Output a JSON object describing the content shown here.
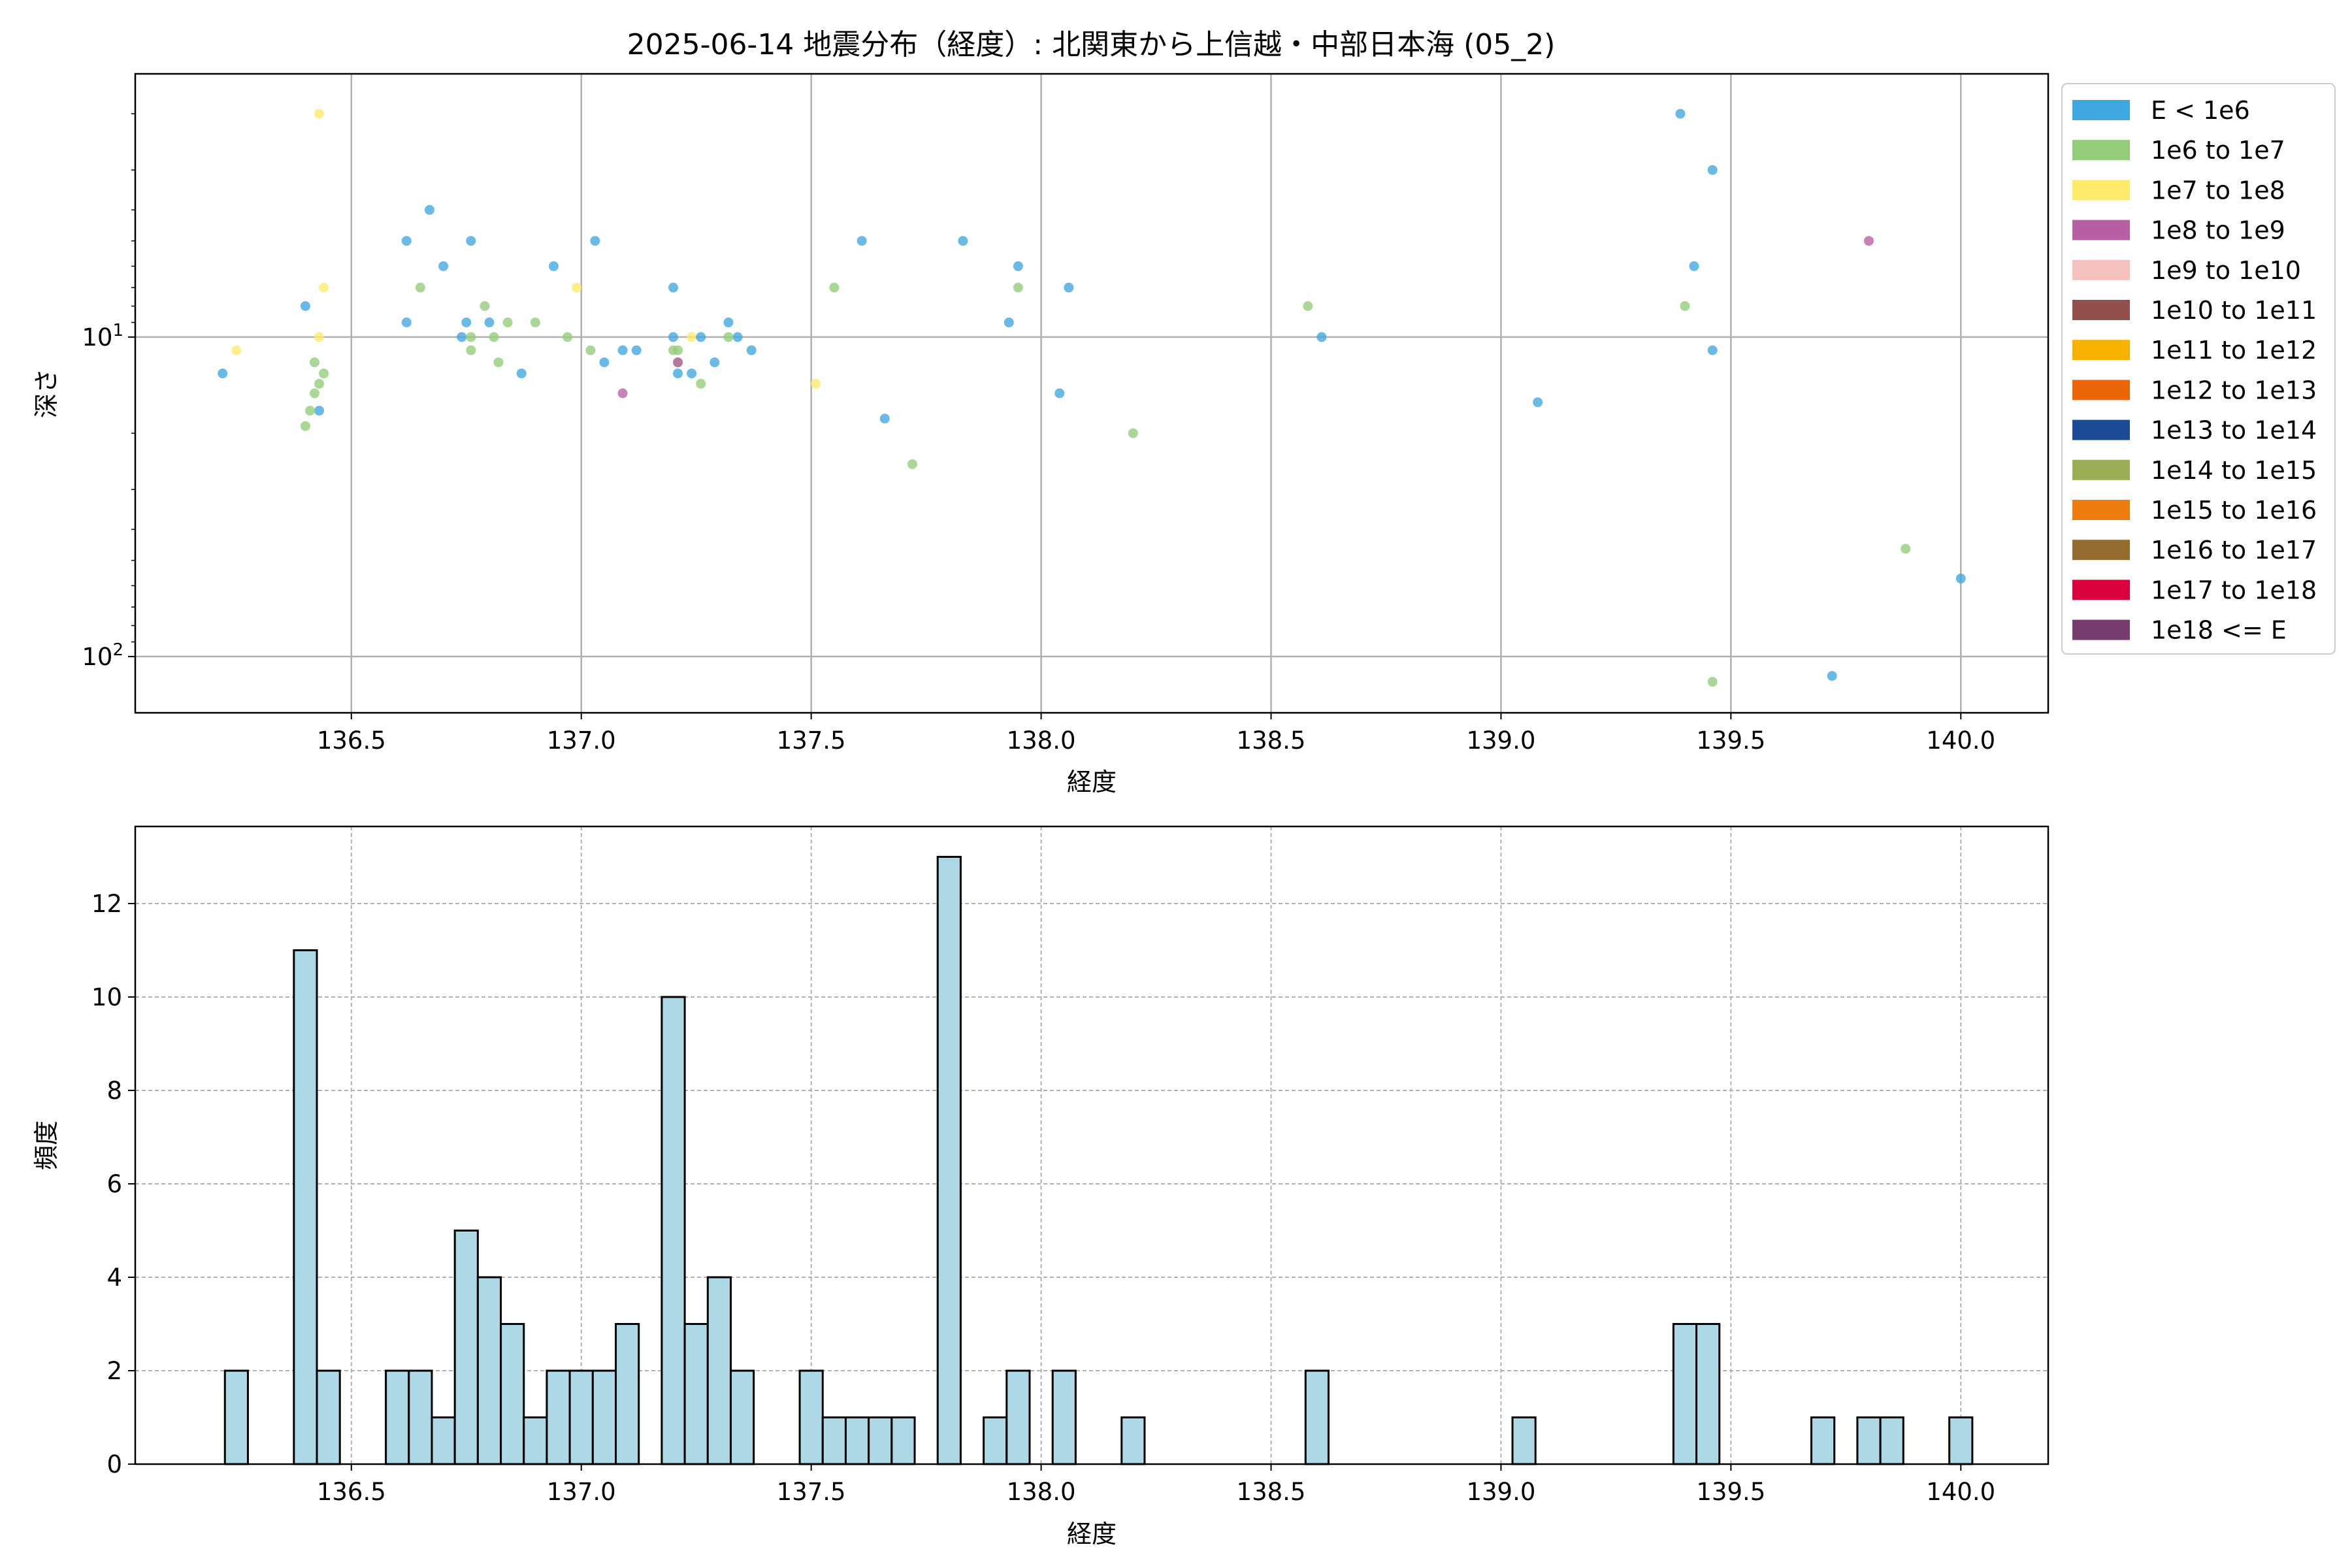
{
  "figure": {
    "title": "2025-06-14 地震分布（経度）: 北関東から上信越・中部日本海 (05_2)"
  },
  "chart_data": [
    {
      "type": "scatter",
      "xlabel": "経度",
      "ylabel": "深さ",
      "xlim": [
        136.03,
        140.19
      ],
      "ylim": [
        150,
        1.5
      ],
      "y_scale": "log",
      "y_inverted": true,
      "x_ticks": [
        "136.5",
        "137.0",
        "137.5",
        "138.0",
        "138.5",
        "139.0",
        "139.5",
        "140.0"
      ],
      "x_tick_values": [
        136.5,
        137.0,
        137.5,
        138.0,
        138.5,
        139.0,
        139.5,
        140.0
      ],
      "y_ticks": [
        {
          "base": "10",
          "exp": "1",
          "value": 10
        },
        {
          "base": "10",
          "exp": "2",
          "value": 100
        }
      ],
      "grid": true,
      "legend_position": "outside-right",
      "legend": [
        {
          "label": "E < 1e6",
          "color": "#3fa7e0"
        },
        {
          "label": "1e6 to 1e7",
          "color": "#94cc79"
        },
        {
          "label": "1e7 to 1e8",
          "color": "#ffeb6a"
        },
        {
          "label": "1e8 to 1e9",
          "color": "#b75fa4"
        },
        {
          "label": "1e9 to 1e10",
          "color": "#f5c1bd"
        },
        {
          "label": "1e10 to 1e11",
          "color": "#934f4c"
        },
        {
          "label": "1e11 to 1e12",
          "color": "#f7b200"
        },
        {
          "label": "1e12 to 1e13",
          "color": "#ec6608"
        },
        {
          "label": "1e13 to 1e14",
          "color": "#1b4a96"
        },
        {
          "label": "1e14 to 1e15",
          "color": "#9bad54"
        },
        {
          "label": "1e15 to 1e16",
          "color": "#ef7d0e"
        },
        {
          "label": "1e16 to 1e17",
          "color": "#946c30"
        },
        {
          "label": "1e17 to 1e18",
          "color": "#da003b"
        },
        {
          "label": "1e18 <= E",
          "color": "#783d6f"
        }
      ],
      "points": [
        {
          "x": 136.43,
          "y": 2.0,
          "c": 2
        },
        {
          "x": 136.25,
          "y": 11,
          "c": 2
        },
        {
          "x": 136.44,
          "y": 7,
          "c": 2
        },
        {
          "x": 136.43,
          "y": 10,
          "c": 2
        },
        {
          "x": 136.99,
          "y": 7,
          "c": 2
        },
        {
          "x": 137.24,
          "y": 10,
          "c": 2
        },
        {
          "x": 137.51,
          "y": 14,
          "c": 2
        },
        {
          "x": 136.22,
          "y": 13,
          "c": 0
        },
        {
          "x": 136.4,
          "y": 8,
          "c": 0
        },
        {
          "x": 136.43,
          "y": 17,
          "c": 0
        },
        {
          "x": 136.62,
          "y": 5,
          "c": 0
        },
        {
          "x": 136.62,
          "y": 9,
          "c": 0
        },
        {
          "x": 136.67,
          "y": 4,
          "c": 0
        },
        {
          "x": 136.7,
          "y": 6,
          "c": 0
        },
        {
          "x": 136.74,
          "y": 10,
          "c": 0
        },
        {
          "x": 136.75,
          "y": 9,
          "c": 0
        },
        {
          "x": 136.76,
          "y": 5,
          "c": 0
        },
        {
          "x": 136.8,
          "y": 9,
          "c": 0
        },
        {
          "x": 136.87,
          "y": 13,
          "c": 0
        },
        {
          "x": 136.94,
          "y": 6,
          "c": 0
        },
        {
          "x": 137.03,
          "y": 5,
          "c": 0
        },
        {
          "x": 137.05,
          "y": 12,
          "c": 0
        },
        {
          "x": 137.09,
          "y": 11,
          "c": 0
        },
        {
          "x": 137.12,
          "y": 11,
          "c": 0
        },
        {
          "x": 137.2,
          "y": 7,
          "c": 0
        },
        {
          "x": 137.2,
          "y": 10,
          "c": 0
        },
        {
          "x": 137.21,
          "y": 13,
          "c": 0
        },
        {
          "x": 137.24,
          "y": 13,
          "c": 0
        },
        {
          "x": 137.26,
          "y": 10,
          "c": 0
        },
        {
          "x": 137.29,
          "y": 12,
          "c": 0
        },
        {
          "x": 137.32,
          "y": 9,
          "c": 0
        },
        {
          "x": 137.34,
          "y": 10,
          "c": 0
        },
        {
          "x": 137.37,
          "y": 11,
          "c": 0
        },
        {
          "x": 137.61,
          "y": 5,
          "c": 0
        },
        {
          "x": 137.66,
          "y": 18,
          "c": 0
        },
        {
          "x": 137.83,
          "y": 5,
          "c": 0
        },
        {
          "x": 137.93,
          "y": 9,
          "c": 0
        },
        {
          "x": 137.95,
          "y": 6,
          "c": 0
        },
        {
          "x": 138.04,
          "y": 15,
          "c": 0
        },
        {
          "x": 138.06,
          "y": 7,
          "c": 0
        },
        {
          "x": 138.61,
          "y": 10,
          "c": 0
        },
        {
          "x": 139.08,
          "y": 16,
          "c": 0
        },
        {
          "x": 139.39,
          "y": 2.0,
          "c": 0
        },
        {
          "x": 139.42,
          "y": 6,
          "c": 0
        },
        {
          "x": 139.46,
          "y": 3,
          "c": 0
        },
        {
          "x": 139.46,
          "y": 11,
          "c": 0
        },
        {
          "x": 139.72,
          "y": 115,
          "c": 0
        },
        {
          "x": 140.0,
          "y": 57,
          "c": 0
        },
        {
          "x": 136.4,
          "y": 19,
          "c": 1
        },
        {
          "x": 136.41,
          "y": 17,
          "c": 1
        },
        {
          "x": 136.42,
          "y": 12,
          "c": 1
        },
        {
          "x": 136.42,
          "y": 15,
          "c": 1
        },
        {
          "x": 136.43,
          "y": 14,
          "c": 1
        },
        {
          "x": 136.44,
          "y": 13,
          "c": 1
        },
        {
          "x": 136.65,
          "y": 7,
          "c": 1
        },
        {
          "x": 136.76,
          "y": 10,
          "c": 1
        },
        {
          "x": 136.76,
          "y": 11,
          "c": 1
        },
        {
          "x": 136.79,
          "y": 8,
          "c": 1
        },
        {
          "x": 136.81,
          "y": 10,
          "c": 1
        },
        {
          "x": 136.82,
          "y": 12,
          "c": 1
        },
        {
          "x": 136.84,
          "y": 9,
          "c": 1
        },
        {
          "x": 136.9,
          "y": 9,
          "c": 1
        },
        {
          "x": 136.97,
          "y": 10,
          "c": 1
        },
        {
          "x": 137.02,
          "y": 11,
          "c": 1
        },
        {
          "x": 137.2,
          "y": 11,
          "c": 1
        },
        {
          "x": 137.21,
          "y": 12,
          "c": 1
        },
        {
          "x": 137.21,
          "y": 11,
          "c": 1
        },
        {
          "x": 137.26,
          "y": 14,
          "c": 1
        },
        {
          "x": 137.32,
          "y": 10,
          "c": 1
        },
        {
          "x": 137.55,
          "y": 7,
          "c": 1
        },
        {
          "x": 137.72,
          "y": 25,
          "c": 1
        },
        {
          "x": 137.95,
          "y": 7,
          "c": 1
        },
        {
          "x": 138.2,
          "y": 20,
          "c": 1
        },
        {
          "x": 138.58,
          "y": 8,
          "c": 1
        },
        {
          "x": 139.4,
          "y": 8,
          "c": 1
        },
        {
          "x": 139.46,
          "y": 120,
          "c": 1
        },
        {
          "x": 139.88,
          "y": 46,
          "c": 1
        },
        {
          "x": 137.09,
          "y": 15,
          "c": 3
        },
        {
          "x": 137.21,
          "y": 12,
          "c": 3
        },
        {
          "x": 139.8,
          "y": 5,
          "c": 3
        }
      ]
    },
    {
      "type": "bar",
      "xlabel": "経度",
      "ylabel": "頻度",
      "xlim": [
        136.03,
        140.19
      ],
      "ylim": [
        0,
        13.65
      ],
      "bar_width": 0.05,
      "bar_color": "#add8e6",
      "edge_color": "#000000",
      "grid": true,
      "x_ticks": [
        "136.5",
        "137.0",
        "137.5",
        "138.0",
        "138.5",
        "139.0",
        "139.5",
        "140.0"
      ],
      "x_tick_values": [
        136.5,
        137.0,
        137.5,
        138.0,
        138.5,
        139.0,
        139.5,
        140.0
      ],
      "y_ticks": [
        "0",
        "2",
        "4",
        "6",
        "8",
        "10",
        "12"
      ],
      "y_tick_values": [
        0,
        2,
        4,
        6,
        8,
        10,
        12
      ],
      "bins": [
        {
          "x": 136.225,
          "value": 2
        },
        {
          "x": 136.375,
          "value": 11
        },
        {
          "x": 136.425,
          "value": 2
        },
        {
          "x": 136.575,
          "value": 2
        },
        {
          "x": 136.625,
          "value": 2
        },
        {
          "x": 136.675,
          "value": 1
        },
        {
          "x": 136.725,
          "value": 5
        },
        {
          "x": 136.775,
          "value": 4
        },
        {
          "x": 136.825,
          "value": 3
        },
        {
          "x": 136.875,
          "value": 1
        },
        {
          "x": 136.925,
          "value": 2
        },
        {
          "x": 136.975,
          "value": 2
        },
        {
          "x": 137.025,
          "value": 2
        },
        {
          "x": 137.075,
          "value": 3
        },
        {
          "x": 137.175,
          "value": 10
        },
        {
          "x": 137.225,
          "value": 3
        },
        {
          "x": 137.275,
          "value": 4
        },
        {
          "x": 137.325,
          "value": 2
        },
        {
          "x": 137.475,
          "value": 2
        },
        {
          "x": 137.525,
          "value": 1
        },
        {
          "x": 137.575,
          "value": 1
        },
        {
          "x": 137.625,
          "value": 1
        },
        {
          "x": 137.675,
          "value": 1
        },
        {
          "x": 137.775,
          "value": 13
        },
        {
          "x": 137.875,
          "value": 1
        },
        {
          "x": 137.925,
          "value": 2
        },
        {
          "x": 138.025,
          "value": 2
        },
        {
          "x": 138.175,
          "value": 1
        },
        {
          "x": 138.575,
          "value": 2
        },
        {
          "x": 139.025,
          "value": 1
        },
        {
          "x": 139.375,
          "value": 3
        },
        {
          "x": 139.425,
          "value": 3
        },
        {
          "x": 139.675,
          "value": 1
        },
        {
          "x": 139.775,
          "value": 1
        },
        {
          "x": 139.825,
          "value": 1
        },
        {
          "x": 139.975,
          "value": 1
        }
      ]
    }
  ]
}
